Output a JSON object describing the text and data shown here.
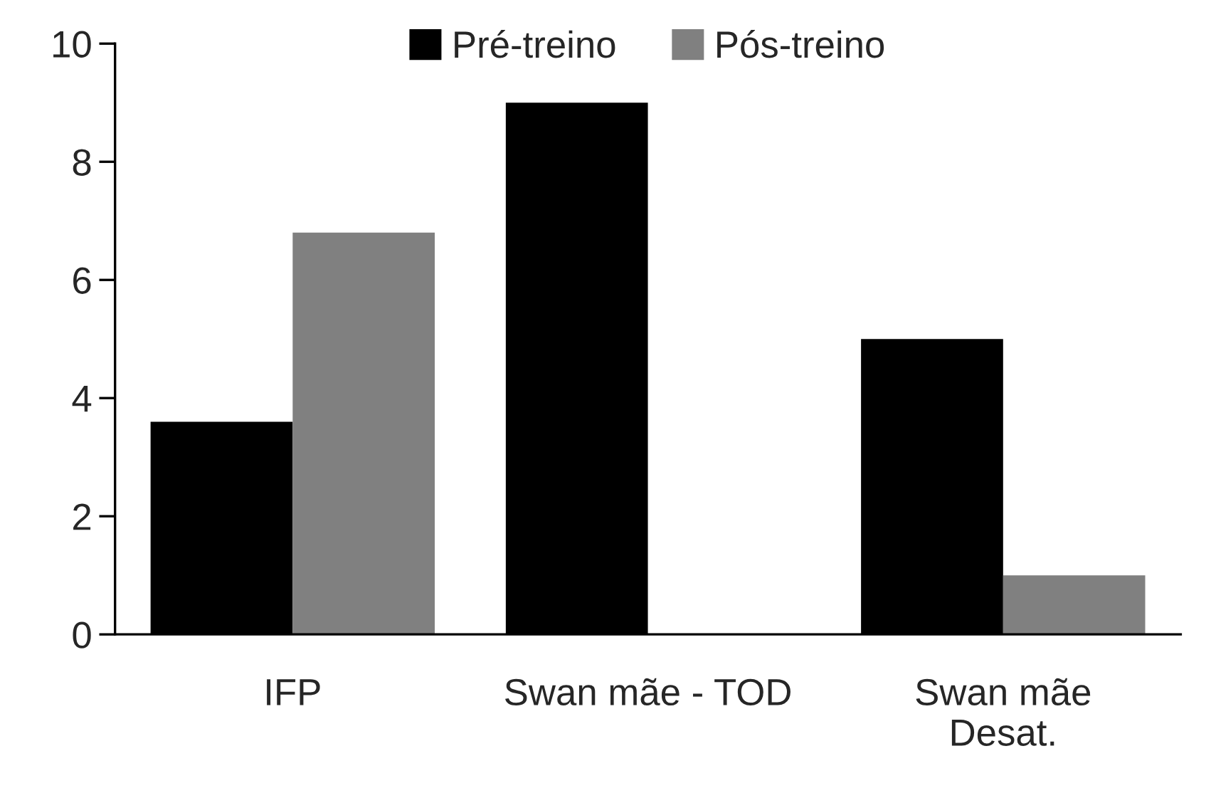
{
  "chart_data": {
    "type": "bar",
    "categories": [
      "IFP",
      "Swan mãe - TOD",
      "Swan mãe\nDesat."
    ],
    "series": [
      {
        "name": "Pré-treino",
        "color": "#000000",
        "values": [
          3.6,
          9,
          5
        ]
      },
      {
        "name": "Pós-treino",
        "color": "#808080",
        "values": [
          6.8,
          0,
          1
        ]
      }
    ],
    "ylim": [
      0,
      10
    ],
    "yticks": [
      0,
      2,
      4,
      6,
      8,
      10
    ],
    "grid": false,
    "legend": "top"
  }
}
